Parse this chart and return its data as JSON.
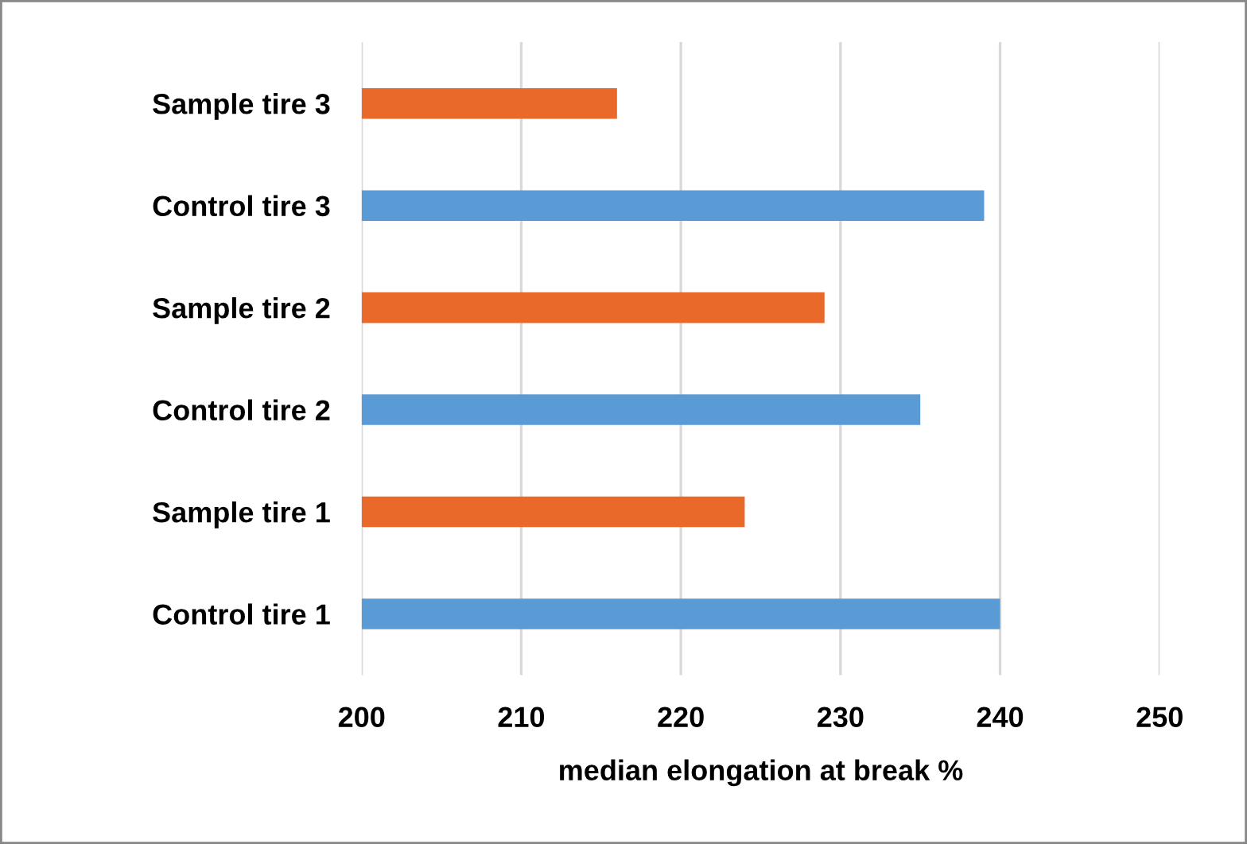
{
  "chart_data": {
    "type": "bar",
    "orientation": "horizontal",
    "xlabel": "median elongation at break %",
    "categories": [
      "Sample tire 3",
      "Control tire 3",
      "Sample tire 2",
      "Control tire 2",
      "Sample tire 1",
      "Control tire 1"
    ],
    "values": [
      216,
      239,
      229,
      235,
      224,
      240
    ],
    "colors": [
      "#e8692a",
      "#5b9bd5",
      "#e8692a",
      "#5b9bd5",
      "#e8692a",
      "#5b9bd5"
    ],
    "xlim": [
      200,
      250
    ],
    "xticks": [
      200,
      210,
      220,
      230,
      240,
      250
    ],
    "grid": "x"
  }
}
